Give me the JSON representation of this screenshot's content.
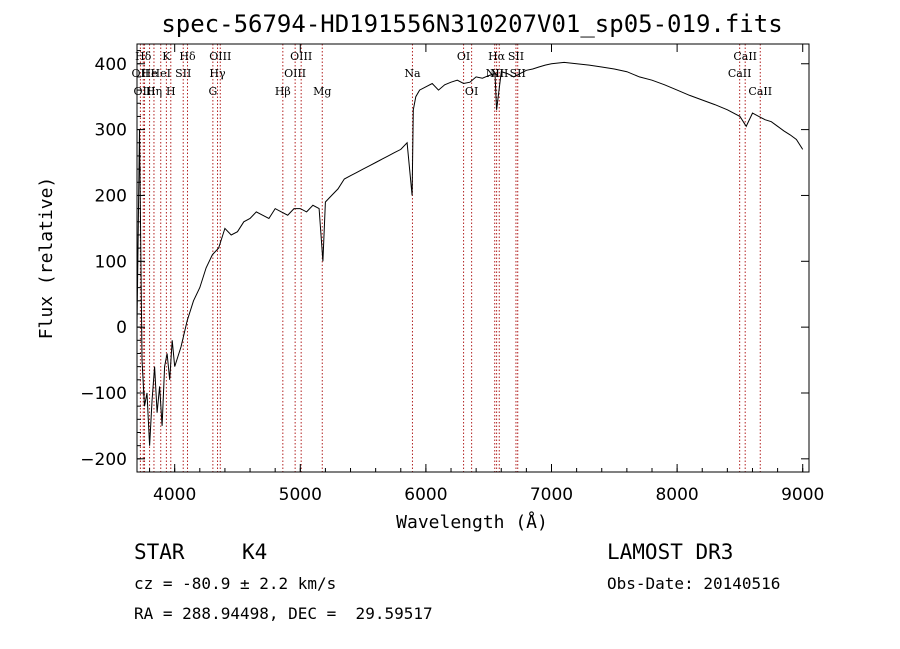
{
  "chart_data": {
    "type": "line",
    "title": "spec-56794-HD191556N310207V01_sp05-019.fits",
    "xlabel": "Wavelength (Å)",
    "ylabel": "Flux (relative)",
    "xlim": [
      3700,
      9050
    ],
    "ylim": [
      -220,
      430
    ],
    "xticks": [
      "4000",
      "5000",
      "6000",
      "7000",
      "8000",
      "9000"
    ],
    "yticks": [
      "−200",
      "−100",
      "0",
      "100",
      "200",
      "300",
      "400"
    ],
    "series": [
      {
        "x": [
          3700,
          3720,
          3740,
          3760,
          3780,
          3800,
          3820,
          3840,
          3860,
          3880,
          3900,
          3920,
          3940,
          3960,
          3980,
          4000,
          4050,
          4100,
          4150,
          4200,
          4250,
          4300,
          4350,
          4400,
          4450,
          4500,
          4550,
          4600,
          4650,
          4700,
          4750,
          4800,
          4850,
          4900,
          4950,
          5000,
          5050,
          5100,
          5150,
          5180,
          5200,
          5250,
          5300,
          5350,
          5400,
          5450,
          5500,
          5550,
          5600,
          5650,
          5700,
          5750,
          5800,
          5850,
          5890,
          5900,
          5920,
          5950,
          6000,
          6050,
          6100,
          6150,
          6200,
          6250,
          6300,
          6350,
          6400,
          6450,
          6500,
          6550,
          6563,
          6600,
          6650,
          6700,
          6750,
          6800,
          6850,
          6900,
          6950,
          7000,
          7100,
          7200,
          7300,
          7400,
          7500,
          7600,
          7700,
          7800,
          7900,
          8000,
          8100,
          8200,
          8300,
          8400,
          8500,
          8550,
          8600,
          8650,
          8700,
          8750,
          8800,
          8850,
          8900,
          8950,
          9000
        ],
        "y": [
          0,
          300,
          -50,
          -120,
          -100,
          -180,
          -110,
          -60,
          -130,
          -90,
          -150,
          -60,
          -40,
          -80,
          -20,
          -60,
          -30,
          10,
          40,
          60,
          90,
          110,
          120,
          150,
          140,
          145,
          160,
          165,
          175,
          170,
          165,
          180,
          175,
          170,
          180,
          180,
          175,
          185,
          180,
          100,
          190,
          200,
          210,
          225,
          230,
          235,
          240,
          245,
          250,
          255,
          260,
          265,
          270,
          280,
          200,
          330,
          350,
          360,
          365,
          370,
          360,
          368,
          372,
          375,
          370,
          372,
          380,
          378,
          382,
          385,
          330,
          388,
          385,
          380,
          385,
          390,
          392,
          395,
          398,
          400,
          402,
          400,
          398,
          395,
          392,
          388,
          380,
          375,
          368,
          360,
          352,
          345,
          338,
          330,
          320,
          305,
          325,
          320,
          315,
          312,
          305,
          298,
          292,
          285,
          270
        ]
      }
    ],
    "line_ids": [
      {
        "label": "Hδ",
        "x": 3750,
        "row": 0
      },
      {
        "label": "He",
        "x": 3800,
        "row": 1
      },
      {
        "label": "K",
        "x": 3934,
        "row": 0
      },
      {
        "label": "Hδ",
        "x": 4102,
        "row": 0
      },
      {
        "label": "HeI",
        "x": 3889,
        "row": 1
      },
      {
        "label": "SII",
        "x": 4068,
        "row": 1
      },
      {
        "label": "OII",
        "x": 3727,
        "row": 1
      },
      {
        "label": "OIII",
        "x": 3760,
        "row": 2
      },
      {
        "label": "Hη",
        "x": 3835,
        "row": 2
      },
      {
        "label": "H",
        "x": 3969,
        "row": 2
      },
      {
        "label": "OIII",
        "x": 4363,
        "row": 0
      },
      {
        "label": "Hγ",
        "x": 4341,
        "row": 1
      },
      {
        "label": "G",
        "x": 4304,
        "row": 2
      },
      {
        "label": "Hβ",
        "x": 4861,
        "row": 2
      },
      {
        "label": "OIII",
        "x": 4959,
        "row": 1
      },
      {
        "label": "OIII",
        "x": 5007,
        "row": 0
      },
      {
        "label": "Mg",
        "x": 5175,
        "row": 2
      },
      {
        "label": "Na",
        "x": 5893,
        "row": 1
      },
      {
        "label": "OI",
        "x": 6300,
        "row": 0
      },
      {
        "label": "OI",
        "x": 6364,
        "row": 2
      },
      {
        "label": "Hα",
        "x": 6563,
        "row": 0
      },
      {
        "label": "NII",
        "x": 6548,
        "row": 1
      },
      {
        "label": "NII",
        "x": 6584,
        "row": 1
      },
      {
        "label": "SII",
        "x": 6717,
        "row": 0
      },
      {
        "label": "SII",
        "x": 6731,
        "row": 1
      },
      {
        "label": "CaII",
        "x": 8498,
        "row": 1
      },
      {
        "label": "CaII",
        "x": 8542,
        "row": 0
      },
      {
        "label": "CaII",
        "x": 8662,
        "row": 2
      }
    ]
  },
  "info": {
    "object_class": "STAR",
    "subclass": "K4",
    "survey": "LAMOST DR3",
    "redshift": "cz = -80.9 ± 2.2 km/s",
    "obs_date": "Obs-Date: 20140516",
    "coords": "RA = 288.94498, DEC =  29.59517"
  },
  "colors": {
    "line_marker": "#b22222",
    "spectrum": "#000000"
  }
}
